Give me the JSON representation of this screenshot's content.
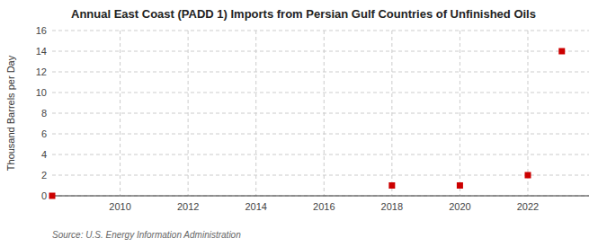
{
  "chart_data": {
    "type": "scatter",
    "title": "Annual East Coast (PADD 1) Imports from Persian Gulf Countries of Unfinished Oils",
    "ylabel": "Thousand Barrels per Day",
    "source": "Source: U.S. Energy Information Administration",
    "x": [
      2008,
      2018,
      2020,
      2022,
      2023
    ],
    "values": [
      0,
      1,
      1,
      2,
      14
    ],
    "color": "#cc0000",
    "marker": "square",
    "xlim": [
      2008,
      2023.8
    ],
    "ylim": [
      0,
      16
    ],
    "xticks": [
      2010,
      2012,
      2014,
      2016,
      2018,
      2020,
      2022
    ],
    "yticks": [
      0,
      2,
      4,
      6,
      8,
      10,
      12,
      14,
      16
    ],
    "grid": true
  }
}
